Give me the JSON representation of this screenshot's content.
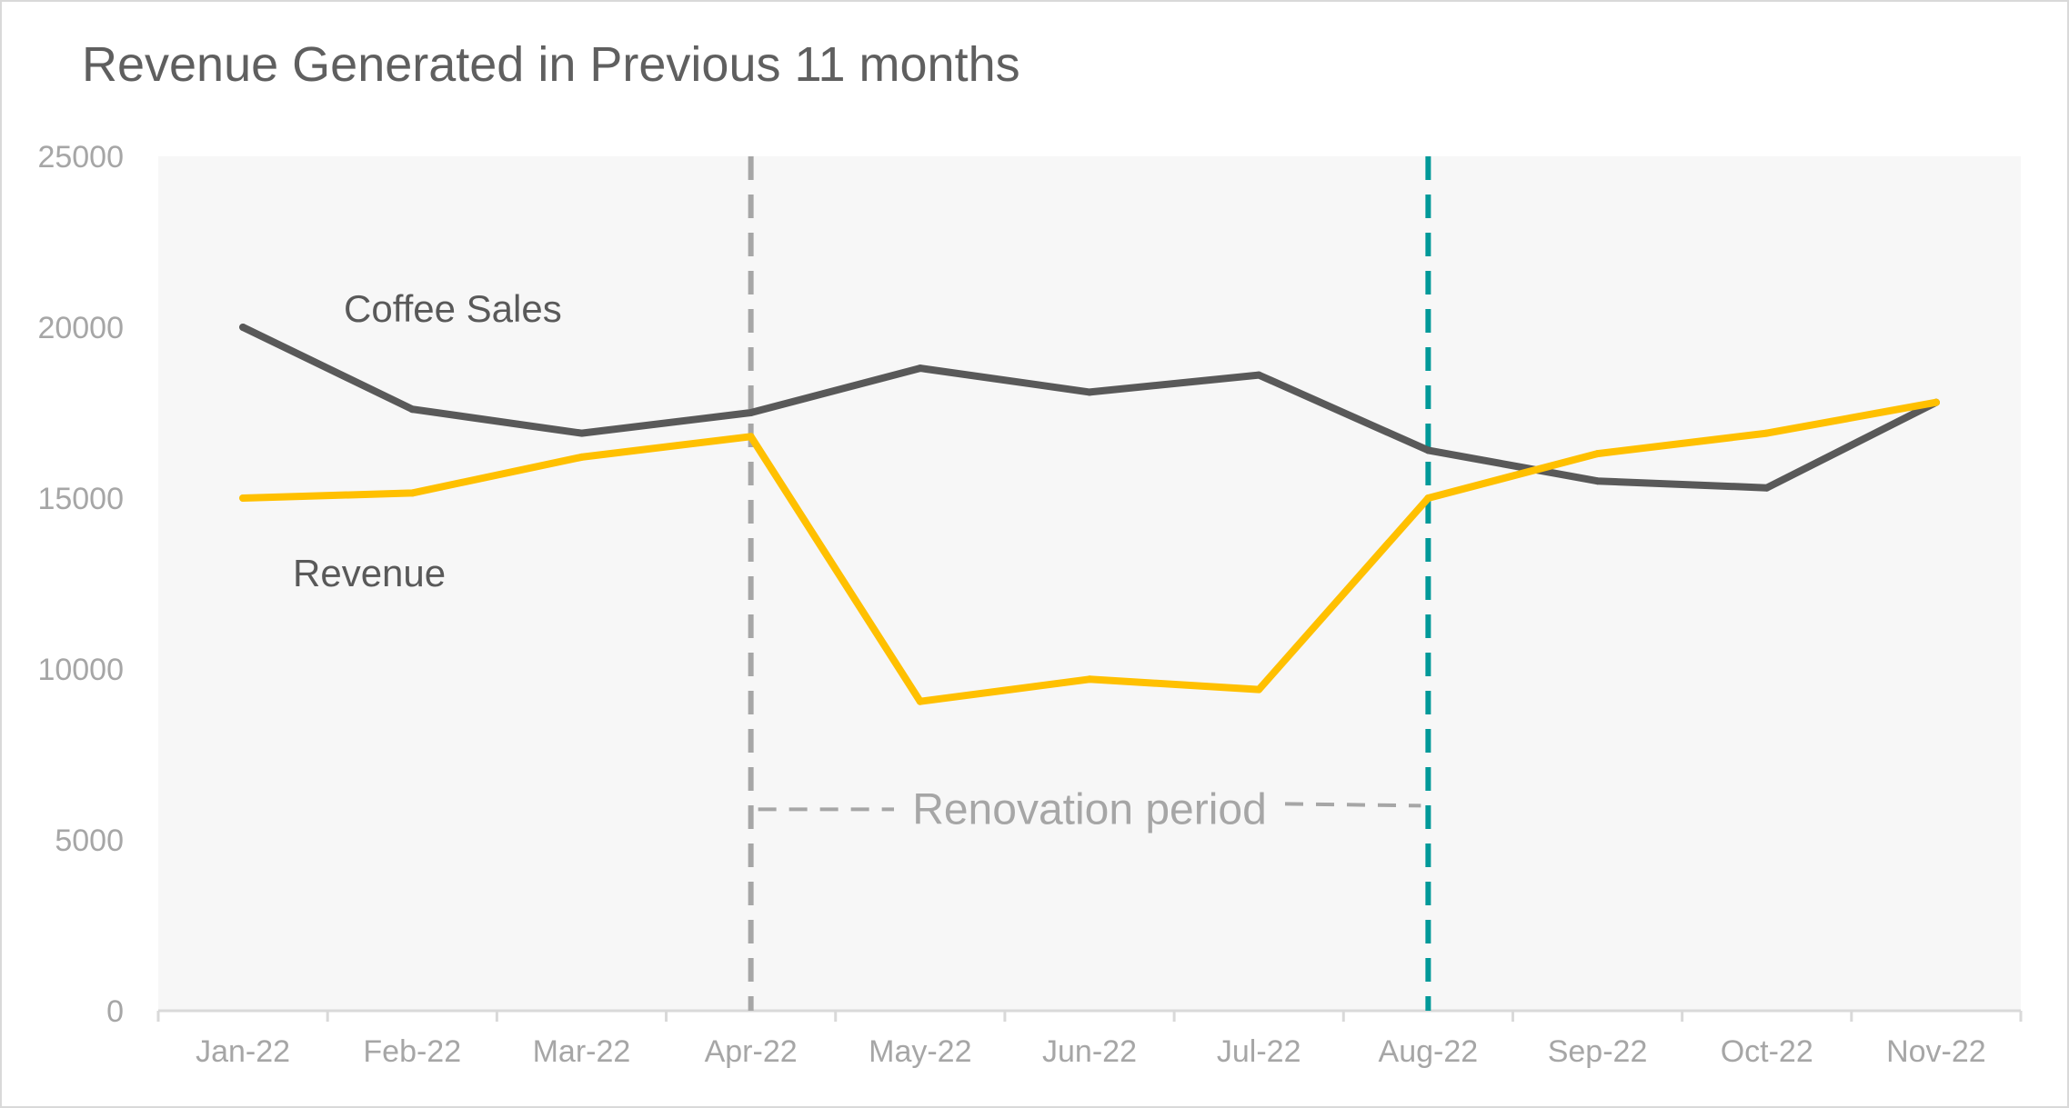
{
  "chart_data": {
    "type": "line",
    "title": "Revenue Generated in Previous 11 months",
    "xlabel": "",
    "ylabel": "",
    "categories": [
      "Jan-22",
      "Feb-22",
      "Mar-22",
      "Apr-22",
      "May-22",
      "Jun-22",
      "Jul-22",
      "Aug-22",
      "Sep-22",
      "Oct-22",
      "Nov-22"
    ],
    "ylim": [
      0,
      25000
    ],
    "yticks": [
      0,
      5000,
      10000,
      15000,
      20000,
      25000
    ],
    "grid": false,
    "legend": "none",
    "series": [
      {
        "name": "Coffee Sales",
        "color": "#595959",
        "values": [
          20000,
          17600,
          16900,
          17500,
          18800,
          18100,
          18600,
          16400,
          15500,
          15300,
          17800
        ]
      },
      {
        "name": "Revenue",
        "color": "#ffc000",
        "values": [
          15000,
          15150,
          16200,
          16800,
          9050,
          9700,
          9400,
          15000,
          16300,
          16900,
          17800
        ]
      }
    ],
    "annotations": [
      {
        "text": "Renovation period",
        "start": "Apr-22",
        "end": "Aug-22",
        "y": 6000,
        "color": "#a6a6a6"
      }
    ],
    "reference_lines": [
      {
        "x": "Apr-22",
        "style": "dashed",
        "color": "#a6a6a6"
      },
      {
        "x": "Aug-22",
        "style": "dashed",
        "color": "#009999"
      }
    ],
    "colors": {
      "plot_background": "#f7f7f7",
      "axis": "#d9d9d9",
      "text": "#a6a6a6",
      "title": "#5f5f5f"
    }
  }
}
